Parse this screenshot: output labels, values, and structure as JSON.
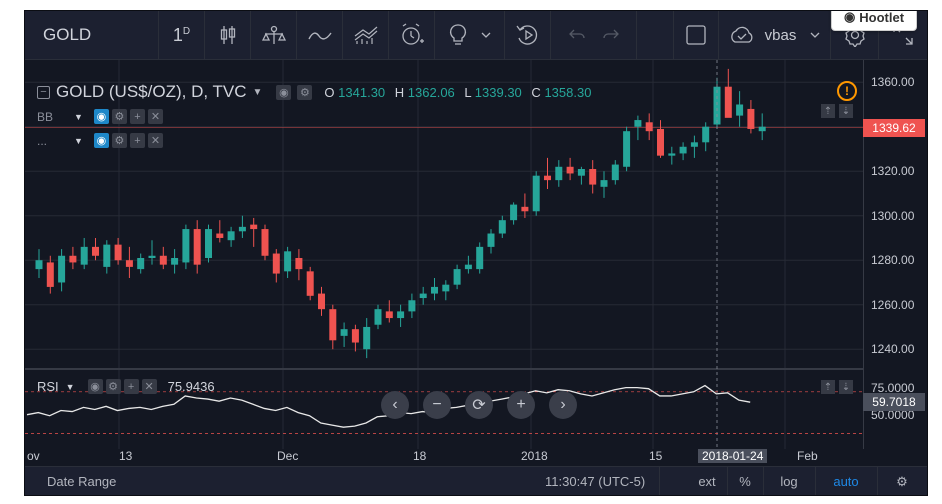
{
  "toolbar": {
    "symbol": "GOLD",
    "interval": "1",
    "interval_sup": "D",
    "script_label": "vbas",
    "hootlet": "Hootlet"
  },
  "legend": {
    "title": "GOLD (US$/OZ), D, TVC",
    "o_label": "O",
    "o": "1341.30",
    "h_label": "H",
    "h": "1362.06",
    "l_label": "L",
    "l": "1339.30",
    "c_label": "C",
    "c": "1358.30",
    "bb": "BB",
    "dots": "..."
  },
  "rsi": {
    "label": "RSI",
    "value": "75.9436"
  },
  "price_axis": {
    "labels": [
      "1360.00",
      "1340.00",
      "1320.00",
      "1300.00",
      "1280.00",
      "1260.00",
      "1240.00"
    ],
    "current": "1339.62",
    "rsi_labels": [
      "75.0000",
      "50.0000"
    ],
    "rsi_current": "59.7018"
  },
  "time_axis": {
    "ticks": [
      "ov",
      "13",
      "Dec",
      "18",
      "2018",
      "15",
      "2018-01-24",
      "Feb"
    ]
  },
  "bottom": {
    "date_range": "Date Range",
    "time": "11:30:47 (UTC-5)",
    "ext": "ext",
    "pct": "%",
    "log": "log",
    "auto": "auto"
  },
  "colors": {
    "up": "#26a69a",
    "down": "#ef5350",
    "bg": "#131722",
    "accent": "#1e88c9"
  },
  "chart_data": {
    "type": "candlestick",
    "ylim": [
      1232,
      1370
    ],
    "candles": [
      [
        1276,
        1285,
        1272,
        1280
      ],
      [
        1279,
        1282,
        1265,
        1268
      ],
      [
        1270,
        1285,
        1266,
        1282
      ],
      [
        1282,
        1286,
        1276,
        1279
      ],
      [
        1278,
        1290,
        1276,
        1286
      ],
      [
        1286,
        1290,
        1280,
        1282
      ],
      [
        1277,
        1289,
        1274,
        1287
      ],
      [
        1287,
        1290,
        1278,
        1280
      ],
      [
        1280,
        1286,
        1272,
        1277
      ],
      [
        1276,
        1283,
        1274,
        1281
      ],
      [
        1281,
        1289,
        1278,
        1282
      ],
      [
        1282,
        1286,
        1276,
        1278
      ],
      [
        1278,
        1285,
        1274,
        1281
      ],
      [
        1279,
        1296,
        1276,
        1294
      ],
      [
        1294,
        1298,
        1274,
        1278
      ],
      [
        1281,
        1296,
        1279,
        1294
      ],
      [
        1292,
        1298,
        1288,
        1290
      ],
      [
        1289,
        1295,
        1286,
        1293
      ],
      [
        1293,
        1300,
        1290,
        1295
      ],
      [
        1296,
        1299,
        1286,
        1294
      ],
      [
        1294,
        1296,
        1280,
        1282
      ],
      [
        1283,
        1285,
        1270,
        1274
      ],
      [
        1275,
        1286,
        1272,
        1284
      ],
      [
        1281,
        1285,
        1271,
        1276
      ],
      [
        1275,
        1277,
        1262,
        1264
      ],
      [
        1265,
        1268,
        1255,
        1258
      ],
      [
        1258,
        1260,
        1240,
        1244
      ],
      [
        1246,
        1252,
        1241,
        1249
      ],
      [
        1249,
        1251,
        1239,
        1243
      ],
      [
        1240,
        1254,
        1236,
        1250
      ],
      [
        1251,
        1260,
        1249,
        1258
      ],
      [
        1257,
        1262,
        1252,
        1254
      ],
      [
        1254,
        1260,
        1250,
        1257
      ],
      [
        1257,
        1265,
        1254,
        1262
      ],
      [
        1263,
        1268,
        1260,
        1265
      ],
      [
        1265,
        1272,
        1262,
        1268
      ],
      [
        1266,
        1271,
        1262,
        1269
      ],
      [
        1269,
        1278,
        1267,
        1276
      ],
      [
        1276,
        1282,
        1274,
        1278
      ],
      [
        1276,
        1288,
        1274,
        1286
      ],
      [
        1286,
        1294,
        1283,
        1292
      ],
      [
        1292,
        1300,
        1290,
        1298
      ],
      [
        1298,
        1306,
        1296,
        1305
      ],
      [
        1304,
        1310,
        1299,
        1302
      ],
      [
        1302,
        1320,
        1300,
        1318
      ],
      [
        1318,
        1326,
        1312,
        1316
      ],
      [
        1316,
        1325,
        1313,
        1322
      ],
      [
        1322,
        1326,
        1316,
        1319
      ],
      [
        1318,
        1322,
        1314,
        1321
      ],
      [
        1321,
        1325,
        1310,
        1314
      ],
      [
        1313,
        1320,
        1308,
        1316
      ],
      [
        1316,
        1325,
        1314,
        1323
      ],
      [
        1322,
        1340,
        1320,
        1338
      ],
      [
        1340,
        1345,
        1334,
        1343
      ],
      [
        1342,
        1346,
        1334,
        1338
      ],
      [
        1339,
        1343,
        1326,
        1327
      ],
      [
        1327,
        1331,
        1323,
        1328
      ],
      [
        1328,
        1333,
        1325,
        1331
      ],
      [
        1331,
        1336,
        1326,
        1333
      ],
      [
        1333,
        1342,
        1329,
        1340
      ],
      [
        1341,
        1362,
        1339,
        1358
      ],
      [
        1358,
        1366,
        1345,
        1344
      ],
      [
        1345,
        1356,
        1340,
        1350
      ],
      [
        1348,
        1352,
        1337,
        1339
      ],
      [
        1338,
        1346,
        1334,
        1340
      ]
    ],
    "rsi": [
      48,
      50,
      47,
      52,
      51,
      55,
      53,
      56,
      52,
      54,
      55,
      53,
      56,
      58,
      66,
      64,
      63,
      61,
      64,
      62,
      58,
      54,
      52,
      55,
      50,
      47,
      40,
      38,
      36,
      37,
      40,
      46,
      47,
      50,
      49,
      51,
      50,
      54,
      55,
      57,
      58,
      61,
      63,
      65,
      68,
      71,
      69,
      72,
      71,
      68,
      66,
      69,
      72,
      74,
      74,
      73,
      66,
      66,
      68,
      70,
      76,
      68,
      69,
      62,
      60
    ]
  }
}
